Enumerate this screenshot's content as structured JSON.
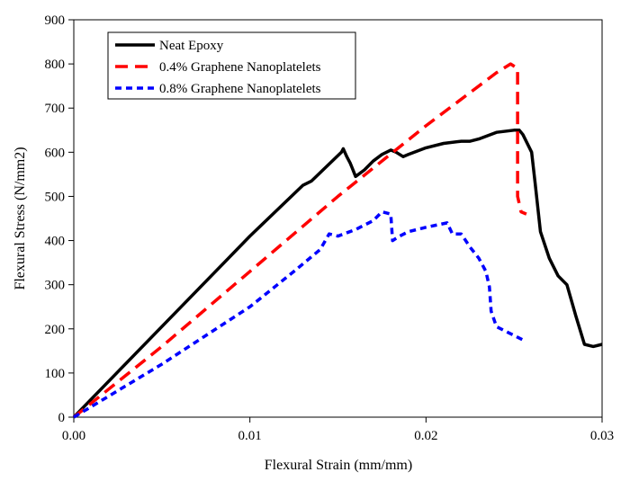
{
  "chart_data": {
    "type": "line",
    "title": "",
    "xlabel": "Flexural Strain (mm/mm)",
    "ylabel": "Flexural Stress (N/mm2)",
    "xlim": [
      0,
      0.03
    ],
    "ylim": [
      0,
      900
    ],
    "xticks": [
      0.0,
      0.01,
      0.02,
      0.03
    ],
    "xtick_labels": [
      "0.00",
      "0.01",
      "0.02",
      "0.03"
    ],
    "yticks": [
      0,
      100,
      200,
      300,
      400,
      500,
      600,
      700,
      800,
      900
    ],
    "ytick_labels": [
      "0",
      "100",
      "200",
      "300",
      "400",
      "500",
      "600",
      "700",
      "800",
      "900"
    ],
    "grid": false,
    "legend_position": "top-left",
    "series": [
      {
        "name": "Neat Epoxy",
        "color": "#000000",
        "style": "solid",
        "x": [
          0,
          0.005,
          0.01,
          0.013,
          0.0135,
          0.0152,
          0.0153,
          0.0155,
          0.0157,
          0.0158,
          0.016,
          0.0165,
          0.017,
          0.0175,
          0.018,
          0.0183,
          0.0187,
          0.019,
          0.02,
          0.021,
          0.022,
          0.0225,
          0.023,
          0.024,
          0.025,
          0.0253,
          0.0255,
          0.026,
          0.0262,
          0.0265,
          0.027,
          0.0275,
          0.028,
          0.0285,
          0.029,
          0.0295,
          0.03
        ],
        "values": [
          0,
          205,
          410,
          525,
          535,
          600,
          608,
          590,
          575,
          565,
          545,
          560,
          580,
          595,
          605,
          600,
          590,
          595,
          610,
          620,
          625,
          625,
          630,
          645,
          650,
          650,
          640,
          600,
          530,
          420,
          360,
          320,
          300,
          230,
          165,
          160,
          165
        ]
      },
      {
        "name": "0.4% Graphene Nanoplatelets",
        "color": "#ff0000",
        "style": "dashed",
        "x": [
          0,
          0.005,
          0.01,
          0.015,
          0.02,
          0.024,
          0.0248,
          0.025,
          0.0252,
          0.0252,
          0.0254,
          0.0257
        ],
        "values": [
          0,
          160,
          330,
          500,
          660,
          780,
          800,
          795,
          790,
          500,
          465,
          460
        ]
      },
      {
        "name": "0.8% Graphene Nanoplatelets",
        "color": "#0000ff",
        "style": "dotted",
        "x": [
          0,
          0.005,
          0.01,
          0.0125,
          0.014,
          0.0145,
          0.015,
          0.016,
          0.017,
          0.0175,
          0.018,
          0.0181,
          0.0185,
          0.019,
          0.02,
          0.0212,
          0.0215,
          0.022,
          0.0225,
          0.023,
          0.0234,
          0.0236,
          0.0237,
          0.024,
          0.025,
          0.0255
        ],
        "values": [
          0,
          120,
          250,
          330,
          380,
          415,
          410,
          425,
          445,
          465,
          460,
          400,
          410,
          420,
          430,
          440,
          415,
          415,
          385,
          360,
          330,
          295,
          240,
          205,
          185,
          175
        ]
      }
    ]
  }
}
